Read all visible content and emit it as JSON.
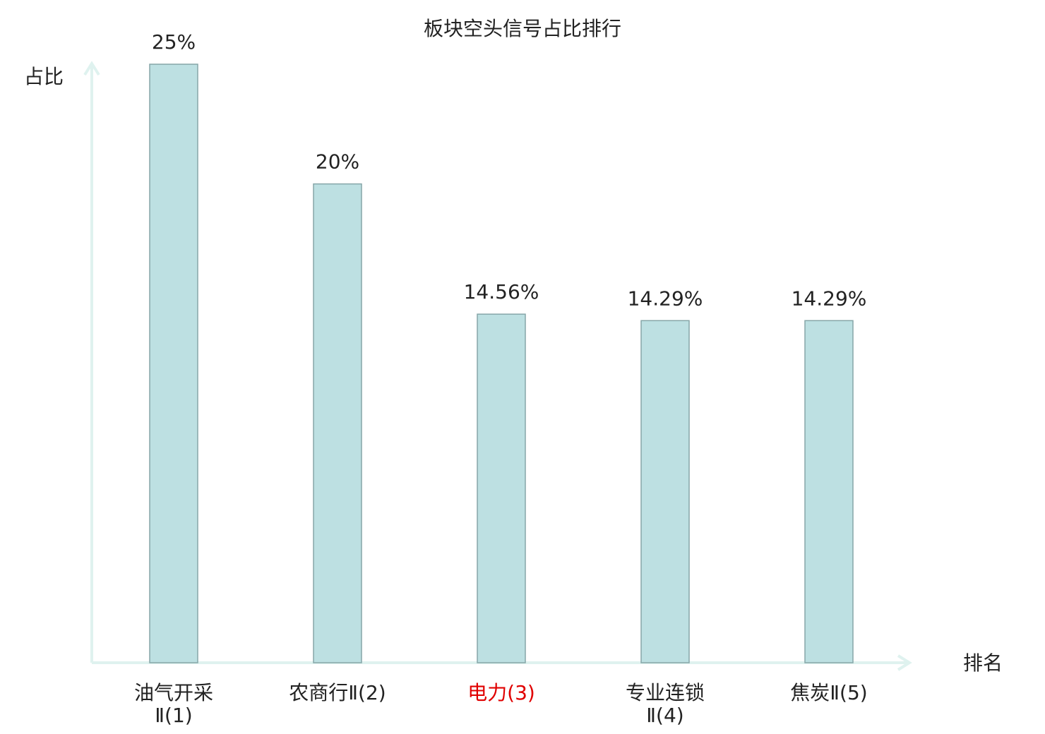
{
  "chart_data": {
    "type": "bar",
    "title": "板块空头信号占比排行",
    "y_label": "占比",
    "x_label": "排名",
    "categories": [
      "油气开采Ⅱ(1)",
      "农商行Ⅱ(2)",
      "电力(3)",
      "专业连锁Ⅱ(4)",
      "焦炭Ⅱ(5)"
    ],
    "values": [
      25,
      20,
      14.56,
      14.29,
      14.29
    ],
    "value_labels": [
      "25%",
      "20%",
      "14.56%",
      "14.29%",
      "14.29%"
    ],
    "color": "#bde0e2",
    "category_colors": [
      "#222222",
      "#222222",
      "#e00000",
      "#222222",
      "#222222"
    ],
    "ylim": [
      0,
      25
    ]
  }
}
